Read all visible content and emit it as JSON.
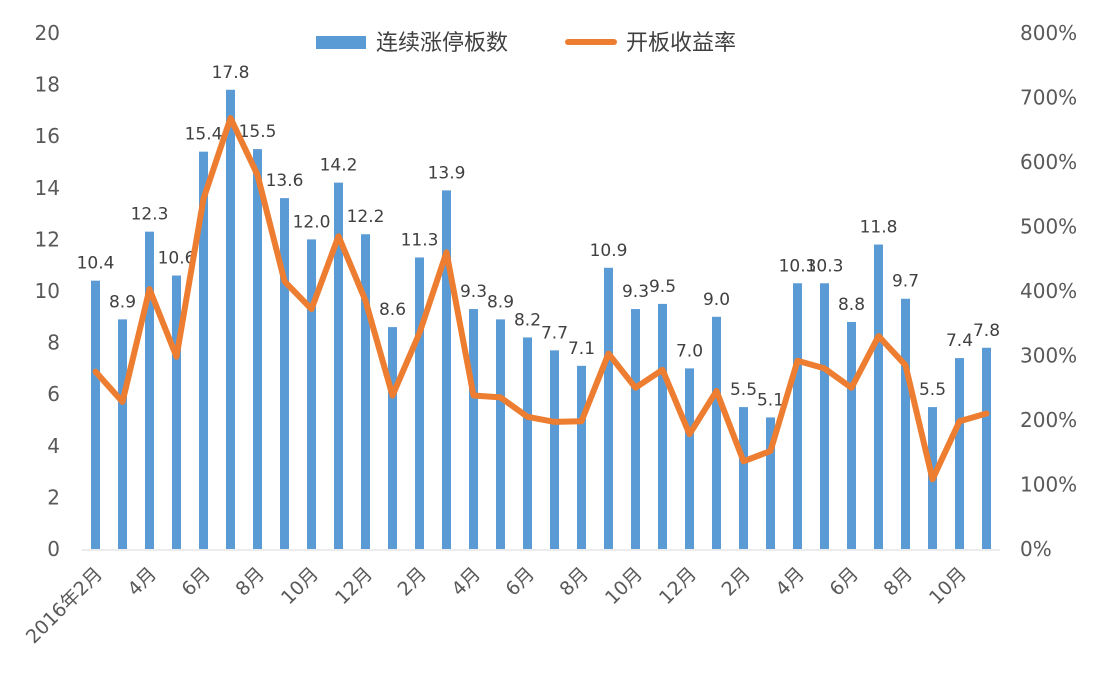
{
  "chart_data": {
    "type": "bar+line",
    "title": "",
    "legend": {
      "position": "top",
      "items": [
        {
          "label": "连续涨停板数",
          "kind": "bar",
          "color": "#5B9BD5"
        },
        {
          "label": "开板收益率",
          "kind": "line",
          "color": "#ED7D31"
        }
      ]
    },
    "x_tick_labels": [
      {
        "index": 0,
        "label": "2016年2月"
      },
      {
        "index": 2,
        "label": "4月"
      },
      {
        "index": 4,
        "label": "6月"
      },
      {
        "index": 6,
        "label": "8月"
      },
      {
        "index": 8,
        "label": "10月"
      },
      {
        "index": 10,
        "label": "12月"
      },
      {
        "index": 12,
        "label": "2月"
      },
      {
        "index": 14,
        "label": "4月"
      },
      {
        "index": 16,
        "label": "6月"
      },
      {
        "index": 18,
        "label": "8月"
      },
      {
        "index": 20,
        "label": "10月"
      },
      {
        "index": 22,
        "label": "12月"
      },
      {
        "index": 24,
        "label": "2月"
      },
      {
        "index": 26,
        "label": "4月"
      },
      {
        "index": 28,
        "label": "6月"
      },
      {
        "index": 30,
        "label": "8月"
      },
      {
        "index": 32,
        "label": "10月"
      }
    ],
    "y_left": {
      "ylim": [
        0,
        20
      ],
      "ticks": [
        "0",
        "2",
        "4",
        "6",
        "8",
        "10",
        "12",
        "14",
        "16",
        "18",
        "20"
      ]
    },
    "y_right": {
      "ylim": [
        0,
        800
      ],
      "ticks": [
        "0%",
        "100%",
        "200%",
        "300%",
        "400%",
        "500%",
        "600%",
        "700%",
        "800%"
      ]
    },
    "series": [
      {
        "name": "连续涨停板数",
        "type": "bar",
        "axis": "left",
        "color": "#5B9BD5",
        "values": [
          10.4,
          8.9,
          12.3,
          10.6,
          15.4,
          17.8,
          15.5,
          13.6,
          12.0,
          14.2,
          12.2,
          8.6,
          11.3,
          13.9,
          9.3,
          8.9,
          8.2,
          7.7,
          7.1,
          10.9,
          9.3,
          9.5,
          7.0,
          9.0,
          5.5,
          5.1,
          10.3,
          10.3,
          8.8,
          11.8,
          9.7,
          5.5,
          7.4,
          7.8
        ],
        "data_labels": [
          "10.4",
          "8.9",
          "12.3",
          "10.6",
          "15.4",
          "17.8",
          "15.5",
          "13.6",
          "12.0",
          "14.2",
          "12.2",
          "8.6",
          "11.3",
          "13.9",
          "9.3",
          "8.9",
          "8.2",
          "7.7",
          "7.1",
          "10.9",
          "9.3",
          "9.5",
          "7.0",
          "9.0",
          "5.5",
          "5.1",
          "10.3",
          "10.3",
          "8.8",
          "11.8",
          "9.7",
          "5.5",
          "7.4",
          "7.8"
        ]
      },
      {
        "name": "开板收益率",
        "type": "line",
        "axis": "right",
        "unit": "%",
        "color": "#ED7D31",
        "values": [
          275,
          228,
          403,
          298,
          543,
          668,
          580,
          415,
          372,
          485,
          385,
          238,
          335,
          460,
          238,
          235,
          205,
          197,
          198,
          303,
          250,
          278,
          178,
          245,
          136,
          152,
          292,
          280,
          250,
          330,
          285,
          108,
          198,
          210
        ]
      }
    ],
    "grid": false
  }
}
